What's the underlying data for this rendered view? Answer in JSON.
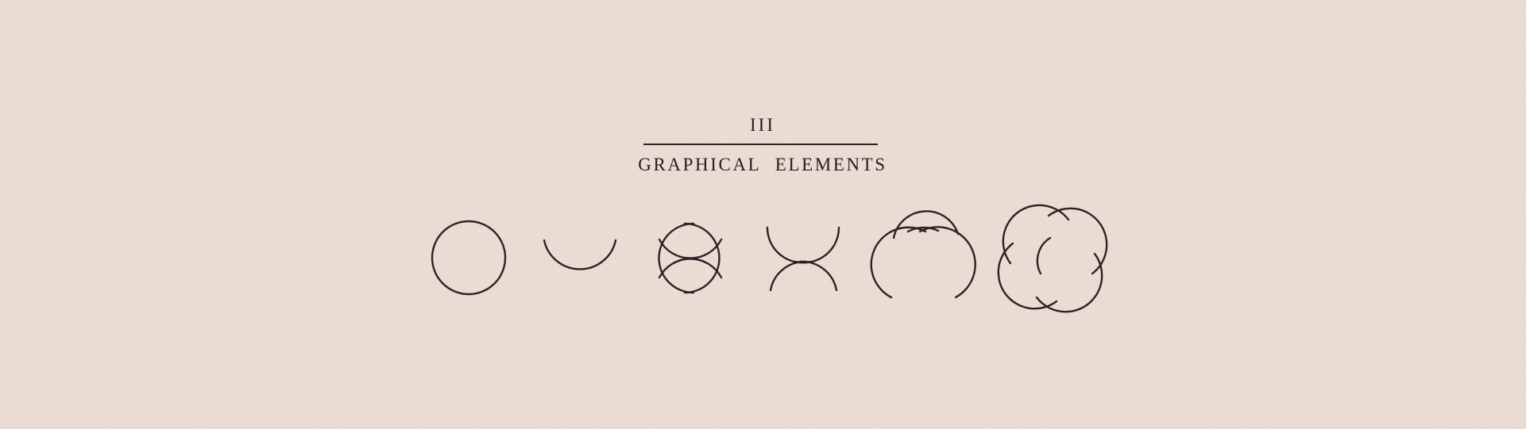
{
  "section": {
    "numeral": "III",
    "title": "GRAPHICAL ELEMENTS"
  },
  "colors": {
    "background": "#efdfd6",
    "ink": "#2a2524"
  },
  "elements": [
    {
      "name": "full-circle"
    },
    {
      "name": "lower-arc"
    },
    {
      "name": "crossed-crescents"
    },
    {
      "name": "twin-crescent-arcs"
    },
    {
      "name": "interlocked-arcs"
    },
    {
      "name": "four-arc-rotation"
    }
  ]
}
